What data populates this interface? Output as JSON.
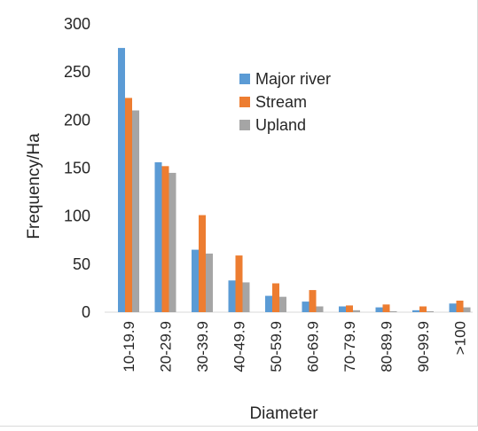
{
  "chart_data": {
    "type": "bar",
    "title": "",
    "xlabel": "Diameter",
    "ylabel": "Frequency/Ha",
    "ylim": [
      0,
      300
    ],
    "yticks": [
      0,
      50,
      100,
      150,
      200,
      250,
      300
    ],
    "grid": false,
    "legend_position": "upper-center",
    "categories": [
      "10-19.9",
      "20-29.9",
      "30-39.9",
      "40-49.9",
      "50-59.9",
      "60-69.9",
      "70-79.9",
      "80-89.9",
      "90-99.9",
      ">100"
    ],
    "series": [
      {
        "name": "Major river",
        "color": "#5b9bd5",
        "values": [
          275,
          156,
          65,
          33,
          17,
          11,
          6,
          5,
          2,
          9
        ]
      },
      {
        "name": "Stream",
        "color": "#ed7d31",
        "values": [
          223,
          152,
          101,
          59,
          30,
          23,
          7,
          8,
          6,
          12
        ]
      },
      {
        "name": "Upland",
        "color": "#a5a5a5",
        "values": [
          210,
          145,
          61,
          31,
          16,
          6,
          2,
          1,
          1,
          5
        ]
      }
    ]
  }
}
